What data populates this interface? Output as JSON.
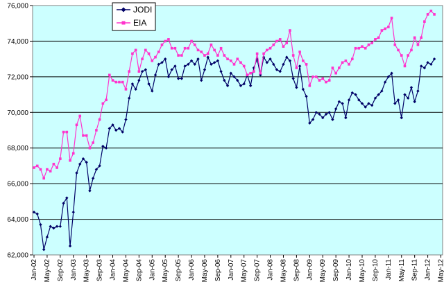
{
  "chart_data": {
    "type": "line",
    "title": "",
    "xlabel": "",
    "ylabel": "",
    "ylim": [
      62000,
      76000
    ],
    "yticks": [
      "62,000",
      "64,000",
      "66,000",
      "68,000",
      "70,000",
      "72,000",
      "74,000",
      "76,000"
    ],
    "ytick_values": [
      62000,
      64000,
      66000,
      68000,
      70000,
      72000,
      74000,
      76000
    ],
    "grid": true,
    "legend_position": "top-left",
    "plot_background": "#ccffff",
    "x_start": "Jan-02",
    "x_tick_labels": [
      "Jan-02",
      "May-02",
      "Sep-02",
      "Jan-03",
      "May-03",
      "Sep-03",
      "Jan-04",
      "May-04",
      "Sep-04",
      "Jan-05",
      "May-05",
      "Sep-05",
      "Jan-06",
      "May-06",
      "Sep-06",
      "Jan-07",
      "May-07",
      "Sep-07",
      "Jan-08",
      "May-08",
      "Sep-08",
      "Jan-09",
      "May-09",
      "Sep-09",
      "Jan-10",
      "May-10",
      "Sep-10",
      "Jan-11",
      "May-11",
      "Sep-11",
      "Jan-12",
      "May-12"
    ],
    "series": [
      {
        "name": "JODI",
        "color": "#000066",
        "marker": "diamond",
        "values": [
          64400,
          64300,
          63700,
          62300,
          63000,
          63600,
          63500,
          63600,
          63600,
          64900,
          65200,
          62500,
          64400,
          66600,
          67100,
          67400,
          67200,
          65600,
          66300,
          66800,
          67000,
          68100,
          68000,
          69100,
          69300,
          69000,
          69100,
          68900,
          69600,
          70800,
          71600,
          71300,
          71800,
          72300,
          72400,
          71600,
          71200,
          72100,
          72700,
          72800,
          73000,
          72000,
          72400,
          72600,
          71900,
          71900,
          72600,
          72700,
          72900,
          72700,
          73000,
          71800,
          72400,
          73100,
          72700,
          72800,
          72900,
          72300,
          71800,
          71500,
          72200,
          72000,
          71800,
          71500,
          71600,
          72100,
          71500,
          72500,
          73000,
          72100,
          73100,
          72800,
          73000,
          72700,
          72400,
          72300,
          72700,
          73100,
          72900,
          71900,
          71400,
          72600,
          71300,
          70900,
          69400,
          69600,
          70000,
          69900,
          69700,
          69900,
          70000,
          69600,
          70200,
          70600,
          70500,
          69700,
          70700,
          71100,
          71000,
          70700,
          70500,
          70300,
          70500,
          70400,
          70800,
          71000,
          71200,
          71700,
          72000,
          72200,
          70500,
          70700,
          69700,
          71000,
          70800,
          71400,
          70600,
          71200,
          72600,
          72500,
          72800,
          72700,
          73000
        ]
      },
      {
        "name": "EIA",
        "color": "#ff33cc",
        "marker": "square",
        "values": [
          66900,
          67000,
          66800,
          66300,
          66800,
          66700,
          67100,
          66900,
          67400,
          68900,
          68900,
          67300,
          67700,
          69300,
          69800,
          68700,
          68700,
          68000,
          68300,
          69000,
          69600,
          70500,
          70700,
          72100,
          71800,
          71700,
          71700,
          71700,
          71300,
          72300,
          73300,
          73500,
          72300,
          73000,
          73500,
          73300,
          72900,
          73100,
          73400,
          73800,
          74000,
          74100,
          73600,
          73600,
          73200,
          73200,
          73600,
          73600,
          74000,
          73800,
          73500,
          73400,
          73200,
          73300,
          73800,
          73500,
          73200,
          73600,
          73200,
          73000,
          72900,
          72700,
          73000,
          72800,
          72600,
          72100,
          72200,
          72300,
          73300,
          72200,
          73300,
          73500,
          73600,
          73800,
          74000,
          74100,
          73700,
          73900,
          74600,
          73200,
          72500,
          73400,
          72900,
          72700,
          71500,
          72000,
          72000,
          71800,
          71900,
          71700,
          71800,
          72500,
          72200,
          72500,
          72800,
          72900,
          72700,
          73000,
          73600,
          73600,
          73700,
          73600,
          73800,
          73900,
          74100,
          74200,
          74600,
          74700,
          74800,
          75300,
          73800,
          73500,
          73200,
          72600,
          73200,
          73500,
          74200,
          73800,
          74200,
          75100,
          75500,
          75700,
          75500
        ]
      }
    ]
  }
}
